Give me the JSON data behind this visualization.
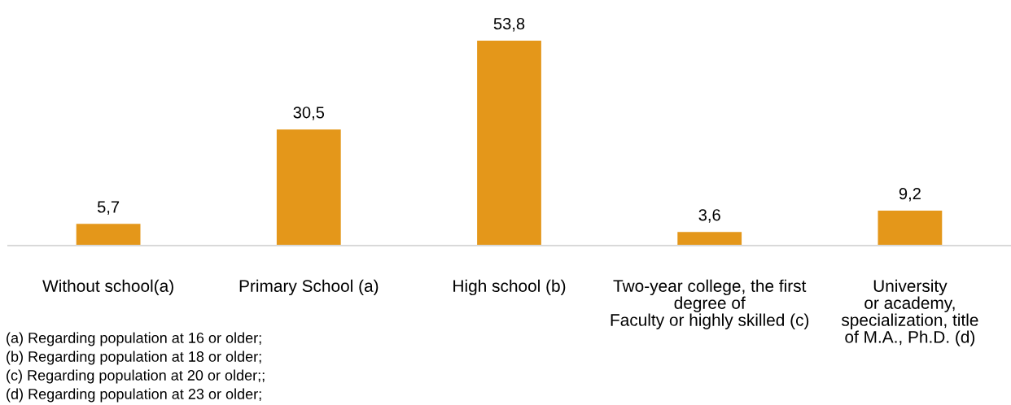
{
  "chart_data": {
    "type": "bar",
    "categories": [
      "Without school(a)",
      "Primary School (a)",
      "High school (b)",
      "Two-year college, the first\ndegree of\nFaculty or highly skilled (c)",
      "University\nor academy,\nspecialization, title\nof M.A., Ph.D. (d)"
    ],
    "values": [
      5.7,
      30.5,
      53.8,
      3.6,
      9.2
    ],
    "value_labels": [
      "5,7",
      "30,5",
      "53,8",
      "3,6",
      "9,2"
    ],
    "color": "#e4971a",
    "tick_labels": "x",
    "annotations": [
      "(a) Regarding population at 16 or older;",
      "(b) Regarding population at 18 or older;",
      "(c) Regarding population at 20 or older;;",
      "(d) Regarding population at 23 or older;"
    ]
  }
}
